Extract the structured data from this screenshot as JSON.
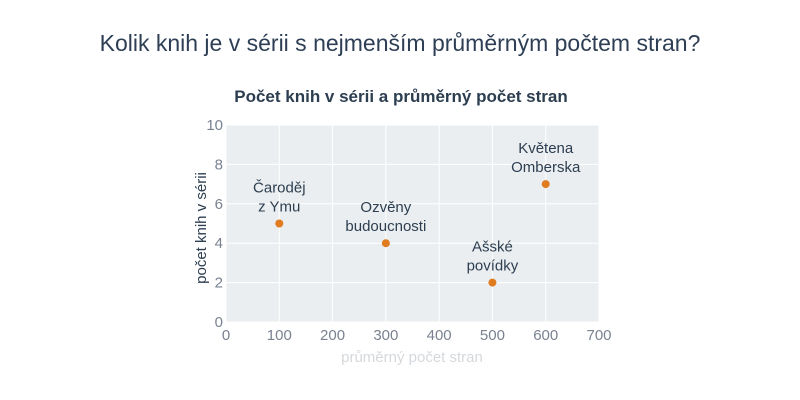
{
  "question": "Kolik knih je v sérii s nejmenším průměrným počtem stran?",
  "chart_data": {
    "type": "scatter",
    "title": "Počet knih v sérii a průměrný počet stran",
    "xlabel": "průměrný počet stran",
    "ylabel": "počet knih v sérii",
    "xlim": [
      0,
      700
    ],
    "ylim": [
      0,
      10
    ],
    "xticks": [
      0,
      100,
      200,
      300,
      400,
      500,
      600,
      700
    ],
    "yticks": [
      0,
      2,
      4,
      6,
      8,
      10
    ],
    "grid": true,
    "legend": "none",
    "marker_color": "#e07b20",
    "points": [
      {
        "label": [
          "Čaroděj",
          "z Ymu"
        ],
        "x": 100,
        "y": 5
      },
      {
        "label": [
          "Ozvěny",
          "budoucnosti"
        ],
        "x": 300,
        "y": 4
      },
      {
        "label": [
          "Ašské",
          "povídky"
        ],
        "x": 500,
        "y": 2
      },
      {
        "label": [
          "Květena",
          "Omberska"
        ],
        "x": 600,
        "y": 7
      }
    ]
  }
}
